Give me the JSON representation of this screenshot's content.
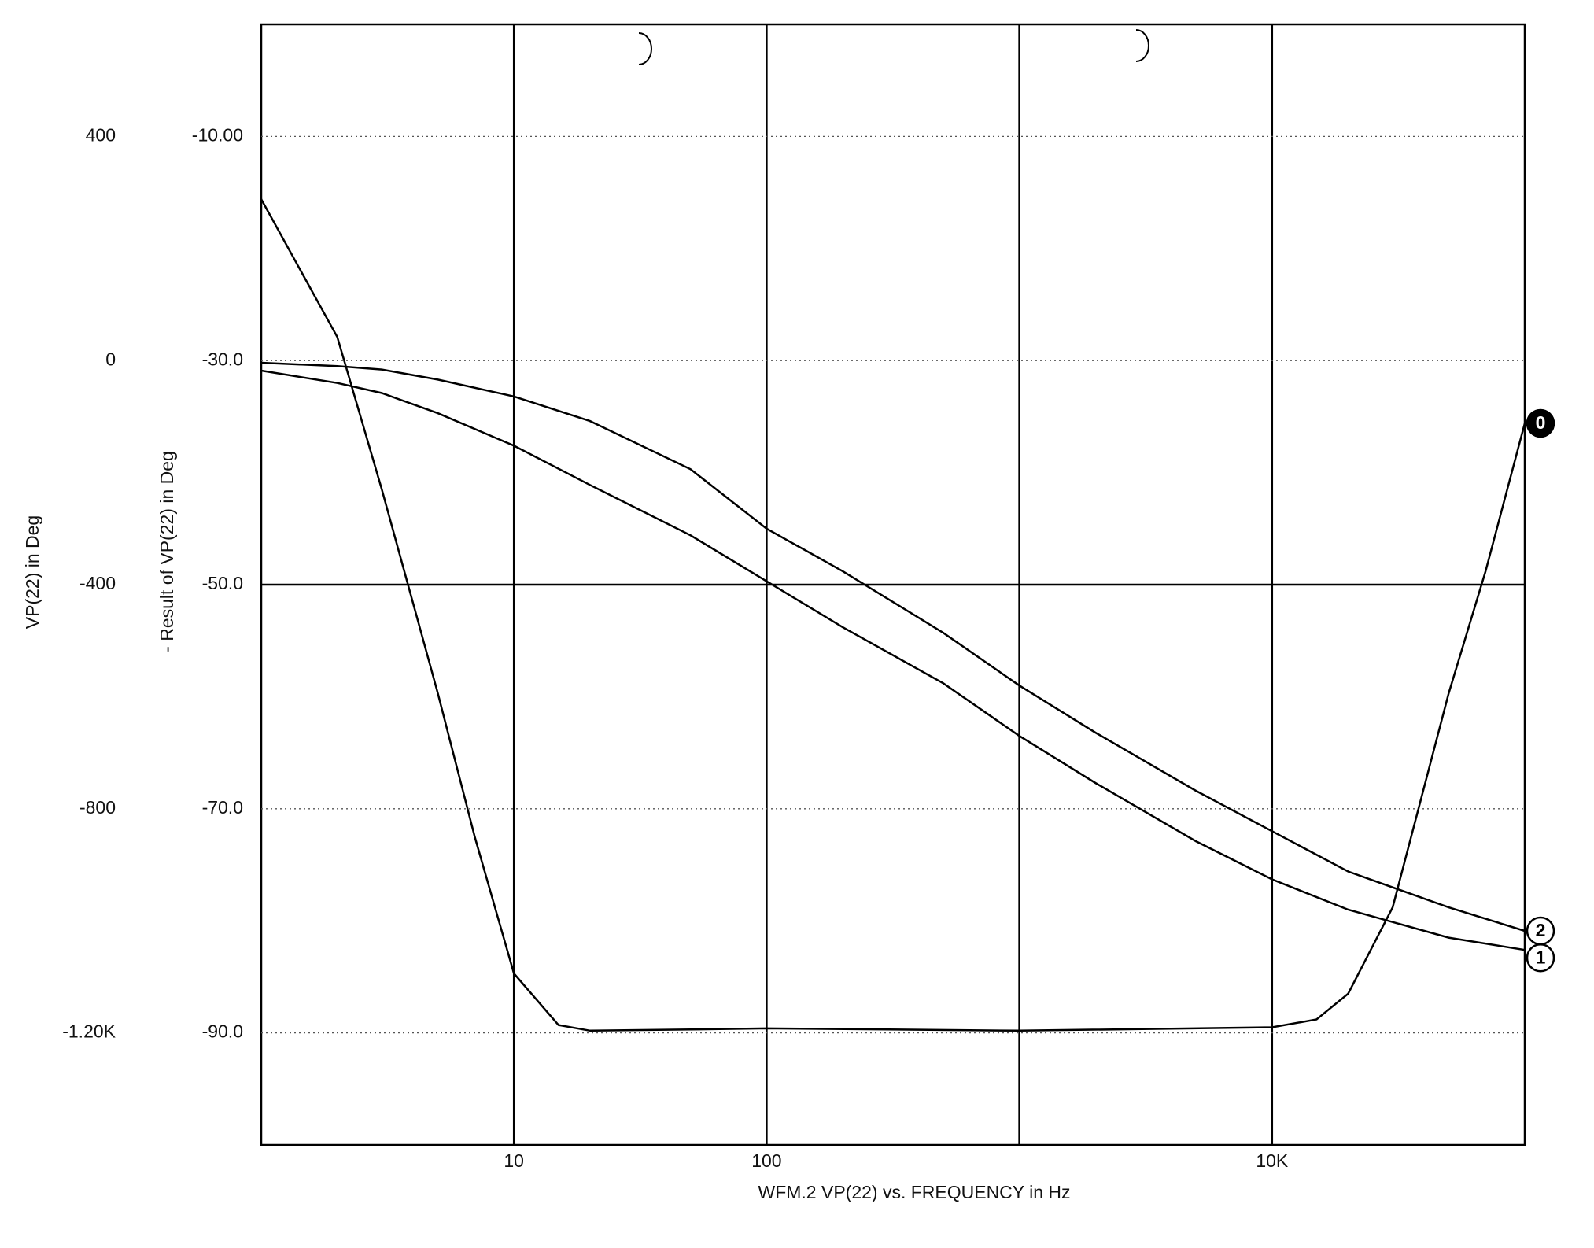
{
  "chart_data": {
    "type": "line",
    "xlabel": "WFM.2   VP(22) vs. FREQUENCY in Hz",
    "ylabel": "VP(22) in Deg",
    "y2label": "- Result of VP(22) in Deg",
    "xscale": "log",
    "xlim": [
      1,
      100000
    ],
    "xgrid": [
      10,
      100,
      1000,
      10000
    ],
    "xticks": [
      10,
      100,
      {
        "value": 10000,
        "label": "10K"
      }
    ],
    "ylim": [
      -1400,
      600
    ],
    "yticks": [
      400,
      0,
      -400,
      -800,
      {
        "value": -1200,
        "label": "-1.20K"
      }
    ],
    "y2lim": [
      -100,
      0
    ],
    "y2ticks": [
      {
        "value": -10,
        "label": "-10.00"
      },
      {
        "value": -30,
        "label": "-30.0"
      },
      {
        "value": -50,
        "label": "-50.0"
      },
      {
        "value": -70,
        "label": "-70.0"
      },
      {
        "value": -90,
        "label": "-90.0"
      }
    ],
    "x_axis_at": -50,
    "grid": true,
    "series": [
      {
        "name": "0",
        "color": "#000000",
        "axis": "y2",
        "x": [
          1,
          2,
          3,
          5,
          7,
          10,
          15,
          20,
          50,
          100,
          1000,
          10000,
          15000,
          20000,
          30000,
          50000,
          70000,
          100000
        ],
        "values": [
          -15.6,
          -27.9,
          -41.5,
          -59.7,
          -72.5,
          -84.7,
          -89.3,
          -89.8,
          -89.7,
          -89.6,
          -89.8,
          -89.5,
          -88.8,
          -86.5,
          -78.8,
          -59.7,
          -48.8,
          -35.6
        ]
      },
      {
        "name": "1",
        "color": "#000000",
        "axis": "y2",
        "x": [
          1,
          2,
          3,
          5,
          10,
          20,
          50,
          100,
          200,
          500,
          1000,
          2000,
          5000,
          10000,
          20000,
          50000,
          100000
        ],
        "values": [
          -30.9,
          -32,
          -32.9,
          -34.7,
          -37.6,
          -41.1,
          -45.6,
          -49.7,
          -53.8,
          -58.8,
          -63.5,
          -67.7,
          -72.9,
          -76.3,
          -79,
          -81.5,
          -82.6
        ]
      },
      {
        "name": "2",
        "color": "#000000",
        "axis": "y2",
        "x": [
          1,
          2,
          3,
          5,
          10,
          20,
          50,
          100,
          200,
          500,
          1000,
          2000,
          5000,
          10000,
          20000,
          50000,
          100000
        ],
        "values": [
          -30.2,
          -30.5,
          -30.8,
          -31.7,
          -33.2,
          -35.4,
          -39.7,
          -45,
          -48.8,
          -54.3,
          -59,
          -63.2,
          -68.4,
          -72,
          -75.6,
          -78.8,
          -80.9
        ]
      }
    ]
  }
}
